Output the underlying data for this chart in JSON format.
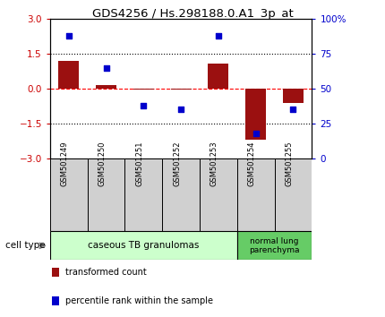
{
  "title": "GDS4256 / Hs.298188.0.A1_3p_at",
  "samples": [
    "GSM501249",
    "GSM501250",
    "GSM501251",
    "GSM501252",
    "GSM501253",
    "GSM501254",
    "GSM501255"
  ],
  "transformed_count": [
    1.2,
    0.15,
    -0.05,
    -0.05,
    1.1,
    -2.2,
    -0.6
  ],
  "percentile_rank": [
    88,
    65,
    38,
    35,
    88,
    18,
    35
  ],
  "ylim_left": [
    -3,
    3
  ],
  "ylim_right": [
    0,
    100
  ],
  "yticks_left": [
    -3,
    -1.5,
    0,
    1.5,
    3
  ],
  "yticks_right": [
    0,
    25,
    50,
    75,
    100
  ],
  "bar_color": "#9B1010",
  "dot_color": "#0000CC",
  "bar_width": 0.55,
  "group1_label": "caseous TB granulomas",
  "group2_label": "normal lung\nparenchyma",
  "group1_color": "#ccffcc",
  "group2_color": "#66cc66",
  "cell_type_label": "cell type",
  "legend_bar_label": "transformed count",
  "legend_dot_label": "percentile rank within the sample",
  "tick_color_left": "#cc0000",
  "tick_color_right": "#0000cc",
  "label_bg": "#d0d0d0"
}
